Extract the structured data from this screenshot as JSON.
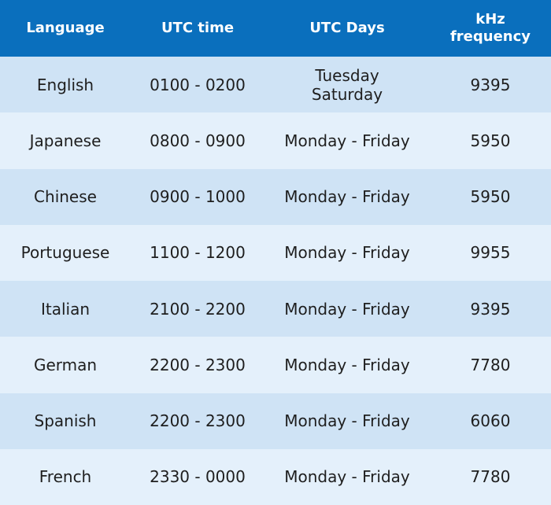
{
  "header": {
    "language": "Language",
    "utc_time": "UTC time",
    "utc_days": "UTC Days",
    "frequency_line1": "kHz",
    "frequency_line2": "frequency"
  },
  "rows": [
    {
      "language": "English",
      "utc_time": "0100 - 0200",
      "utc_days": [
        "Tuesday",
        "Saturday"
      ],
      "frequency": "9395"
    },
    {
      "language": "Japanese",
      "utc_time": "0800 - 0900",
      "utc_days": [
        "Monday - Friday"
      ],
      "frequency": "5950"
    },
    {
      "language": "Chinese",
      "utc_time": "0900 - 1000",
      "utc_days": [
        "Monday - Friday"
      ],
      "frequency": "5950"
    },
    {
      "language": "Portuguese",
      "utc_time": "1100 - 1200",
      "utc_days": [
        "Monday - Friday"
      ],
      "frequency": "9955"
    },
    {
      "language": "Italian",
      "utc_time": "2100 - 2200",
      "utc_days": [
        "Monday - Friday"
      ],
      "frequency": "9395"
    },
    {
      "language": "German",
      "utc_time": "2200 - 2300",
      "utc_days": [
        "Monday - Friday"
      ],
      "frequency": "7780"
    },
    {
      "language": "Spanish",
      "utc_time": "2200 - 2300",
      "utc_days": [
        "Monday - Friday"
      ],
      "frequency": "6060"
    },
    {
      "language": "French",
      "utc_time": "2330 - 0000",
      "utc_days": [
        "Monday - Friday"
      ],
      "frequency": "7780"
    }
  ],
  "colors": {
    "header_background": "#0a6fbd",
    "row_dark": "#cfe3f5",
    "row_light": "#e4f0fb",
    "text": "#1e1e1e"
  }
}
